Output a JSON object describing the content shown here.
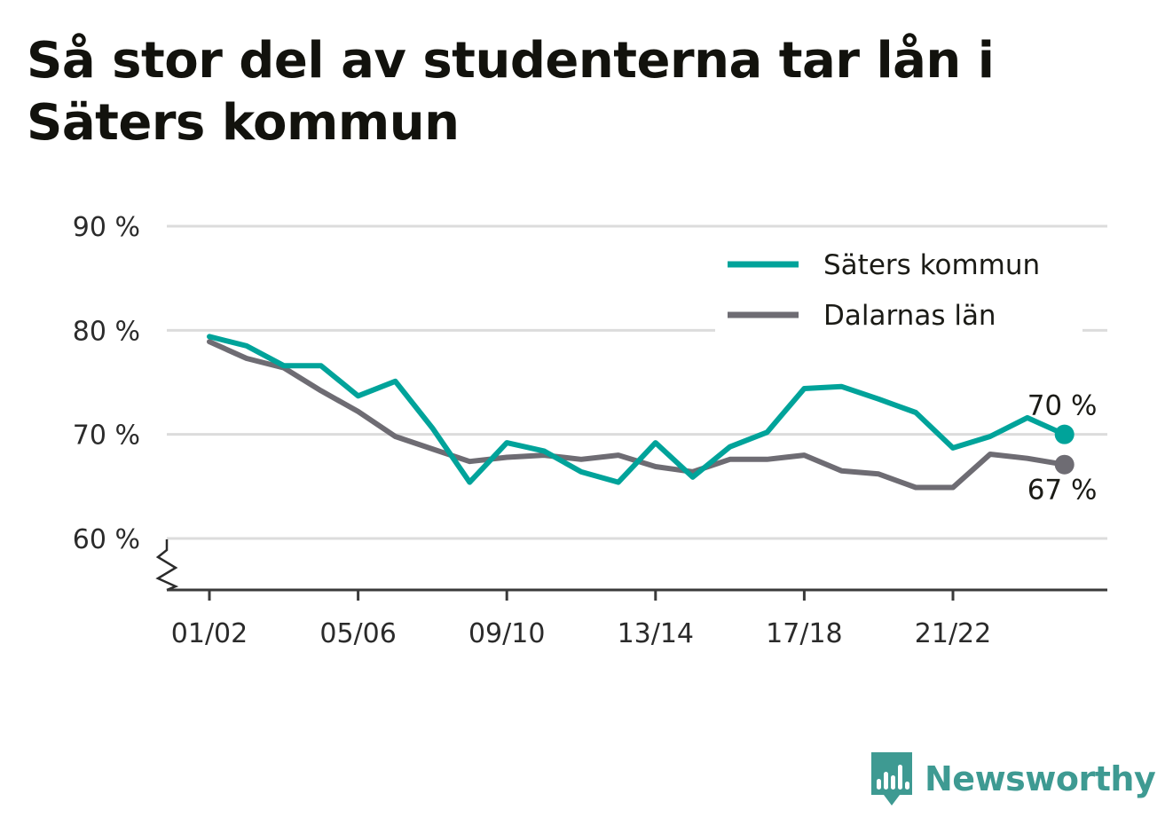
{
  "title": "Så stor del av studenterna tar lån i Säters kommun",
  "brand": {
    "name": "Newsworthy",
    "logo_icon": "bar-chart-speech-bubble-icon",
    "color": "#3e9a92"
  },
  "chart_data": {
    "type": "line",
    "title": "Så stor del av studenterna tar lån i Säters kommun",
    "xlabel": "",
    "ylabel": "",
    "x": [
      "01/02",
      "02/03",
      "03/04",
      "04/05",
      "05/06",
      "06/07",
      "07/08",
      "08/09",
      "09/10",
      "10/11",
      "11/12",
      "12/13",
      "13/14",
      "14/15",
      "15/16",
      "16/17",
      "17/18",
      "18/19",
      "19/20",
      "20/21",
      "21/22",
      "22/23",
      "23/24",
      "24/25"
    ],
    "x_tick_labels": [
      "01/02",
      "05/06",
      "09/10",
      "13/14",
      "17/18",
      "21/22"
    ],
    "y_ticks": [
      60,
      70,
      80,
      90
    ],
    "y_tick_labels": [
      "60 %",
      "70 %",
      "80 %",
      "90 %"
    ],
    "ylim": [
      55,
      90
    ],
    "y_axis_break": true,
    "grid": "horizontal",
    "legend_position": "top-right",
    "series": [
      {
        "name": "Säters kommun",
        "color": "#00a39a",
        "values": [
          79.4,
          78.5,
          76.6,
          76.6,
          73.7,
          75.1,
          70.6,
          65.4,
          69.2,
          68.4,
          66.4,
          65.4,
          69.2,
          65.9,
          68.8,
          70.2,
          74.4,
          74.6,
          73.4,
          72.1,
          68.7,
          69.8,
          71.6,
          70.0
        ],
        "end_label": "70 %"
      },
      {
        "name": "Dalarnas län",
        "color": "#6e6c73",
        "values": [
          78.9,
          77.3,
          76.4,
          74.2,
          72.2,
          69.8,
          68.6,
          67.4,
          67.8,
          68.0,
          67.6,
          68.0,
          66.9,
          66.4,
          67.6,
          67.6,
          68.0,
          66.5,
          66.2,
          64.9,
          64.9,
          68.1,
          67.7,
          67.1
        ],
        "end_label": "67 %"
      }
    ]
  }
}
